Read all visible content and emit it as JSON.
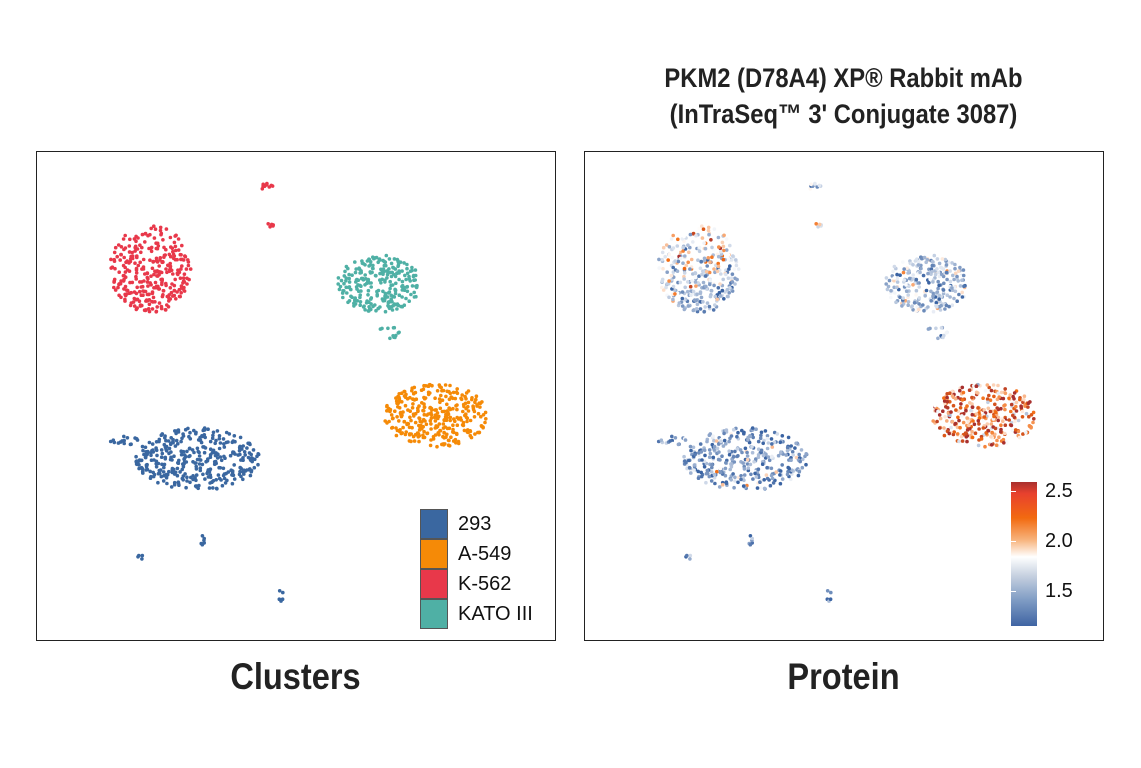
{
  "title_line1": "PKM2 (D78A4) XP® Rabbit mAb",
  "title_line2": "(InTraSeq™ 3' Conjugate 3087)",
  "chart_data": [
    {
      "type": "scatter",
      "title": "Clusters",
      "xlim": [
        0,
        100
      ],
      "ylim": [
        0,
        100
      ],
      "grid": false,
      "legend_placement": "bottom-right",
      "legend": [
        {
          "label": "293",
          "color": "#3a67a0"
        },
        {
          "label": "A-549",
          "color": "#f58a07"
        },
        {
          "label": "K-562",
          "color": "#e8384a"
        },
        {
          "label": "KATO III",
          "color": "#4fb0a5"
        }
      ],
      "clusters": [
        {
          "label": "K-562",
          "cx": 22,
          "cy": 76,
          "rx": 8,
          "ry": 9,
          "n": 320
        },
        {
          "label": "K-562",
          "cx": 44,
          "cy": 93,
          "rx": 1.5,
          "ry": 0.6,
          "n": 10
        },
        {
          "label": "K-562",
          "cx": 45,
          "cy": 85,
          "rx": 0.8,
          "ry": 0.4,
          "n": 5
        },
        {
          "label": "KATO III",
          "cx": 66,
          "cy": 73,
          "rx": 8,
          "ry": 6,
          "n": 260
        },
        {
          "label": "KATO III",
          "cx": 68,
          "cy": 63,
          "rx": 2,
          "ry": 1.5,
          "n": 12
        },
        {
          "label": "A-549",
          "cx": 77,
          "cy": 46,
          "rx": 10,
          "ry": 6.5,
          "n": 330
        },
        {
          "label": "293",
          "cx": 31,
          "cy": 37,
          "rx": 12,
          "ry": 6.5,
          "n": 360
        },
        {
          "label": "293",
          "cx": 17,
          "cy": 41,
          "rx": 3,
          "ry": 1,
          "n": 15
        },
        {
          "label": "293",
          "cx": 32,
          "cy": 21,
          "rx": 0.6,
          "ry": 1.6,
          "n": 6
        },
        {
          "label": "293",
          "cx": 20,
          "cy": 17,
          "rx": 0.8,
          "ry": 0.4,
          "n": 4
        },
        {
          "label": "293",
          "cx": 47,
          "cy": 9,
          "rx": 0.6,
          "ry": 1.2,
          "n": 5
        }
      ]
    },
    {
      "type": "scatter",
      "title": "Protein",
      "xlim": [
        0,
        100
      ],
      "ylim": [
        0,
        100
      ],
      "grid": false,
      "legend_placement": "bottom-right",
      "colorbar": {
        "range": [
          1.2,
          2.65
        ],
        "ticks": [
          "1.5",
          "2.0",
          "2.5"
        ],
        "colors": [
          "#3f64a3",
          "#ffffff",
          "#f26a10",
          "#a8302e"
        ]
      },
      "mean_expression": {
        "293": 1.5,
        "A-549": 2.35,
        "K-562": 1.8,
        "KATO III": 1.65
      }
    }
  ],
  "captions": {
    "left": "Clusters",
    "right": "Protein"
  }
}
